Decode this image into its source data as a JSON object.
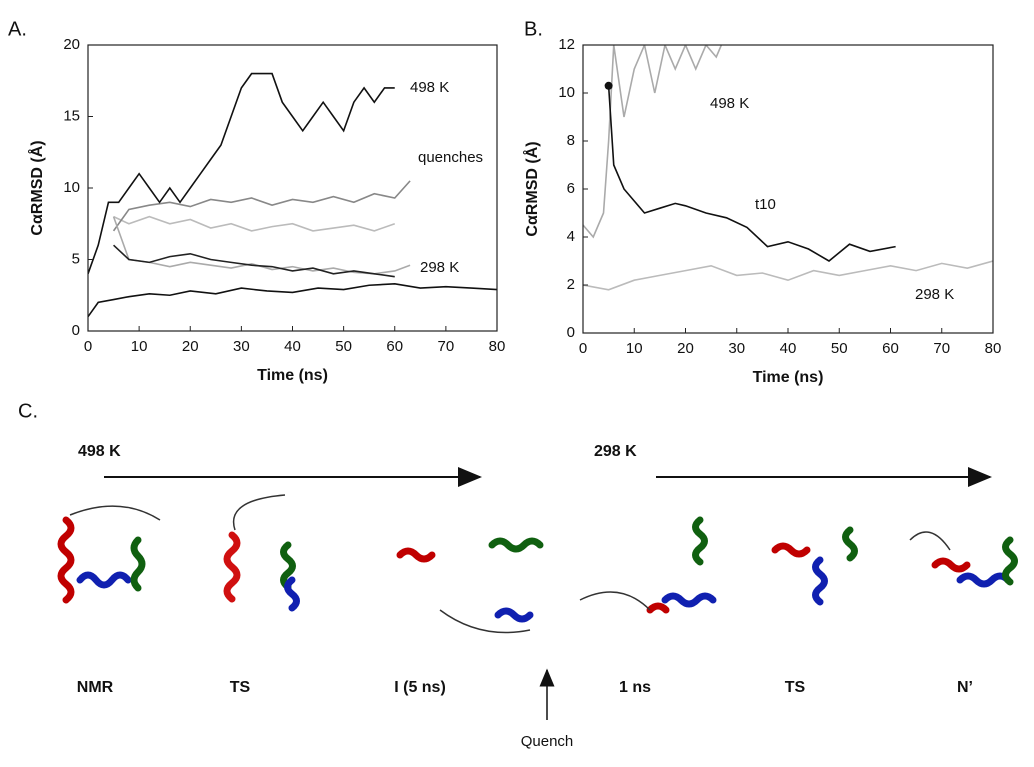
{
  "chart_data": [
    {
      "type": "line",
      "panel": "A.",
      "xlabel": "Time (ns)",
      "ylabel": "CαRMSD (Å)",
      "xlim": [
        0,
        80
      ],
      "ylim": [
        0,
        20
      ],
      "xticks": [
        0,
        10,
        20,
        30,
        40,
        50,
        60,
        70,
        80
      ],
      "yticks": [
        0,
        5,
        10,
        15,
        20
      ],
      "annotations": [
        "498 K",
        "quenches",
        "298 K"
      ],
      "series": [
        {
          "color": "#bbbbbb",
          "x": [
            5,
            8,
            12,
            16,
            20,
            24,
            28,
            32,
            36,
            40,
            44,
            48,
            52,
            56,
            60
          ],
          "values": [
            8,
            7.5,
            8,
            7.5,
            7.8,
            7.2,
            7.5,
            7,
            7.3,
            7.5,
            7,
            7.2,
            7.4,
            7,
            7.5
          ]
        },
        {
          "color": "#888888",
          "x": [
            5,
            8,
            12,
            16,
            20,
            24,
            28,
            32,
            36,
            40,
            44,
            48,
            52,
            56,
            60,
            63
          ],
          "values": [
            7,
            8.5,
            8.8,
            9,
            8.7,
            9.2,
            9,
            9.3,
            8.8,
            9.2,
            9,
            9.4,
            9,
            9.6,
            9.3,
            10.5
          ]
        },
        {
          "color": "#aaaaaa",
          "x": [
            5,
            8,
            12,
            16,
            20,
            24,
            28,
            32,
            36,
            40,
            44,
            48,
            52,
            56,
            60,
            63
          ],
          "values": [
            8,
            5,
            4.8,
            4.5,
            4.8,
            4.6,
            4.4,
            4.7,
            4.3,
            4.5,
            4.2,
            4.4,
            4.1,
            4,
            4.2,
            4.6
          ]
        },
        {
          "color": "#222222",
          "x": [
            5,
            8,
            12,
            16,
            20,
            24,
            28,
            32,
            36,
            40,
            44,
            48,
            52,
            56,
            60
          ],
          "values": [
            6,
            5,
            4.8,
            5.2,
            5.4,
            5,
            4.8,
            4.6,
            4.5,
            4.2,
            4.4,
            4,
            4.2,
            4,
            3.8
          ]
        },
        {
          "color": "#111111",
          "x": [
            0,
            2,
            4,
            6,
            8,
            10,
            12,
            14,
            16,
            18,
            20,
            22,
            24,
            26,
            28,
            30,
            32,
            34,
            36,
            38,
            40,
            42,
            44,
            46,
            48,
            50,
            52,
            54,
            56,
            58,
            60
          ],
          "values": [
            4,
            6,
            9,
            9,
            10,
            11,
            10,
            9,
            10,
            9,
            10,
            11,
            12,
            13,
            15,
            17,
            18,
            18,
            18,
            16,
            15,
            14,
            15,
            16,
            15,
            14,
            16,
            17,
            16,
            17,
            17
          ]
        },
        {
          "color": "#111111",
          "x": [
            0,
            2,
            5,
            8,
            12,
            16,
            20,
            25,
            30,
            35,
            40,
            45,
            50,
            55,
            60,
            65,
            70,
            75,
            80
          ],
          "values": [
            1,
            2,
            2.2,
            2.4,
            2.6,
            2.5,
            2.8,
            2.6,
            3,
            2.8,
            2.7,
            3,
            2.9,
            3.2,
            3.3,
            3,
            3.1,
            3,
            2.9
          ]
        }
      ]
    },
    {
      "type": "line",
      "panel": "B.",
      "xlabel": "Time (ns)",
      "ylabel": "CαRMSD (Å)",
      "xlim": [
        0,
        80
      ],
      "ylim": [
        0,
        12
      ],
      "xticks": [
        0,
        10,
        20,
        30,
        40,
        50,
        60,
        70,
        80
      ],
      "yticks": [
        0,
        2,
        4,
        6,
        8,
        10,
        12
      ],
      "annotations": [
        "498 K",
        "t10",
        "298 K"
      ],
      "series": [
        {
          "color": "#aaaaaa",
          "x": [
            0,
            2,
            4,
            5,
            6,
            8,
            10,
            12,
            14,
            16,
            18,
            20,
            22,
            24,
            26,
            27
          ],
          "values": [
            4.5,
            4,
            5,
            8,
            12,
            9,
            11,
            12,
            10,
            12,
            11,
            12,
            11,
            12,
            11.5,
            12
          ]
        },
        {
          "color": "#bbbbbb",
          "x": [
            0,
            5,
            10,
            15,
            20,
            25,
            30,
            35,
            40,
            45,
            50,
            55,
            60,
            65,
            70,
            75,
            80
          ],
          "values": [
            2,
            1.8,
            2.2,
            2.4,
            2.6,
            2.8,
            2.4,
            2.5,
            2.2,
            2.6,
            2.4,
            2.6,
            2.8,
            2.6,
            2.9,
            2.7,
            3
          ]
        },
        {
          "color": "#111111",
          "start_marker": true,
          "x": [
            5,
            6,
            8,
            10,
            12,
            15,
            18,
            20,
            24,
            28,
            32,
            36,
            40,
            44,
            48,
            52,
            56,
            61
          ],
          "values": [
            10.3,
            7,
            6,
            5.5,
            5,
            5.2,
            5.4,
            5.3,
            5,
            4.8,
            4.4,
            3.6,
            3.8,
            3.5,
            3,
            3.7,
            3.4,
            3.6
          ]
        }
      ]
    }
  ],
  "panel_c": {
    "label": "C.",
    "arrow_labels": [
      "498 K",
      "298 K"
    ],
    "structures": [
      "NMR",
      "TS",
      "I (5 ns)",
      "1 ns",
      "TS",
      "N’"
    ],
    "quench": "Quench"
  }
}
